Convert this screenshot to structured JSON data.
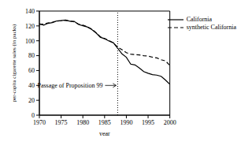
{
  "chart_data": {
    "type": "line",
    "xlabel": "year",
    "ylabel": "per-capita cigarette sales (in packs)",
    "x": [
      1970,
      1971,
      1972,
      1973,
      1974,
      1975,
      1976,
      1977,
      1978,
      1979,
      1980,
      1981,
      1982,
      1983,
      1984,
      1985,
      1986,
      1987,
      1988,
      1989,
      1990,
      1991,
      1992,
      1993,
      1994,
      1995,
      1996,
      1997,
      1998,
      1999,
      2000
    ],
    "series": [
      {
        "name": "California",
        "color": "#000000",
        "line_style": "solid",
        "values": [
          123,
          121,
          123.5,
          124.4,
          126.7,
          127.1,
          128,
          126.4,
          126.1,
          121.9,
          120.2,
          118.6,
          115.4,
          110.8,
          104.8,
          102.8,
          99.7,
          97.5,
          90.1,
          82.4,
          77.8,
          68.7,
          67.5,
          63.4,
          58.6,
          56.4,
          54.5,
          53.8,
          52.3,
          47.2,
          41.6
        ]
      },
      {
        "name": "synthetic California",
        "color": "#000000",
        "line_style": "dashed",
        "values": [
          122,
          122.5,
          124,
          125,
          126.5,
          127,
          127.5,
          126.5,
          125.5,
          122.5,
          121,
          119,
          116,
          111,
          105.5,
          103,
          100.5,
          97,
          91.5,
          88,
          84,
          82,
          81.5,
          81,
          80,
          79.5,
          78,
          77,
          74.5,
          73,
          67
        ]
      }
    ],
    "xlim": [
      1970,
      2000
    ],
    "xticks": [
      1970,
      1975,
      1980,
      1985,
      1990,
      1995,
      2000
    ],
    "ylim": [
      0,
      140
    ],
    "yticks": [
      0,
      20,
      40,
      60,
      80,
      100,
      120,
      140
    ],
    "grid": false,
    "legend": "upper right",
    "annotations": [
      {
        "text": "Passage of Proposition 99",
        "x": 1988,
        "y": 40
      }
    ]
  }
}
